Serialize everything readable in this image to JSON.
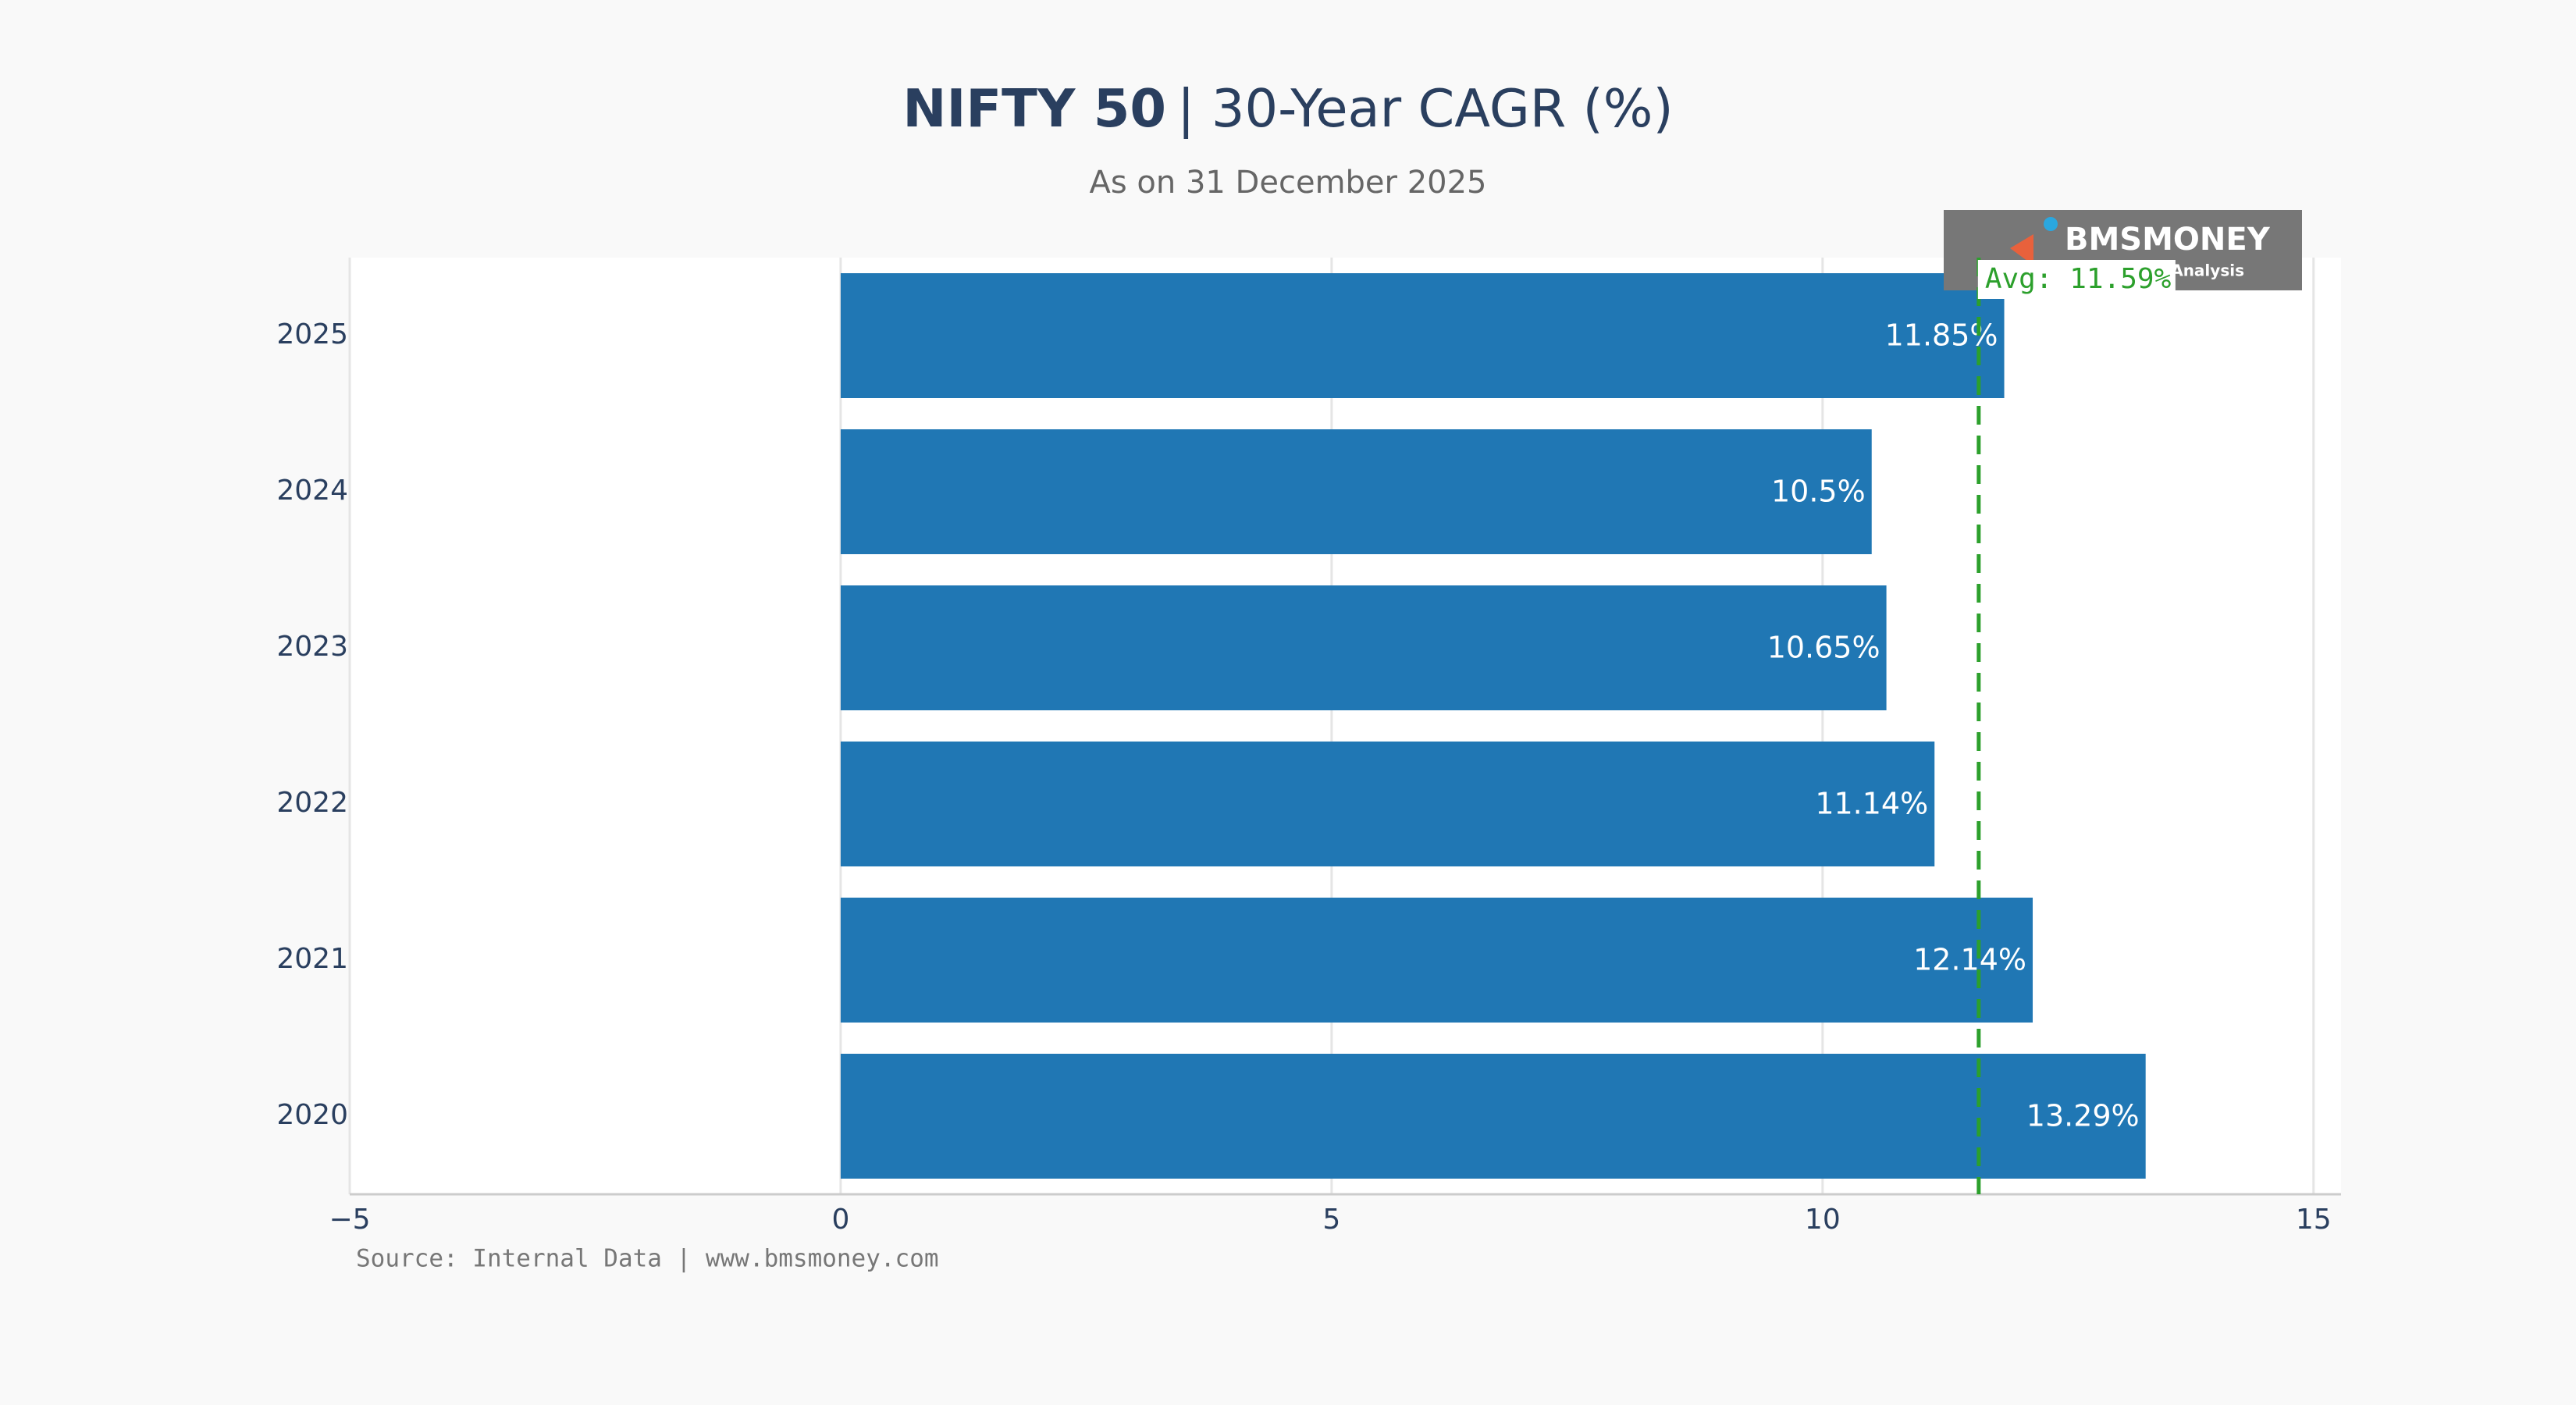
{
  "chart_data": {
    "type": "bar",
    "orientation": "horizontal",
    "title": {
      "emphasis": "NIFTY 50",
      "text": "| 30-Year CAGR (%)"
    },
    "subtitle": "As on 31 December 2025",
    "categories": [
      "2025",
      "2024",
      "2023",
      "2022",
      "2021",
      "2020"
    ],
    "values": [
      11.85,
      10.5,
      10.65,
      11.14,
      12.14,
      13.29
    ],
    "value_labels": [
      "11.85%",
      "10.5%",
      "10.65%",
      "11.14%",
      "12.14%",
      "13.29%"
    ],
    "color": "#2077b4",
    "xlim": [
      -5,
      15.28
    ],
    "xticks": [
      {
        "value": -5,
        "label": "−5"
      },
      0,
      5,
      10,
      15
    ],
    "grid": true,
    "average": {
      "value": 11.59,
      "label": "Avg: 11.59%",
      "color": "#2ca02c"
    },
    "source": "Source: Internal Data | www.bmsmoney.com",
    "logo": {
      "name": "BMSMONEY",
      "tag": "Analysis"
    }
  }
}
